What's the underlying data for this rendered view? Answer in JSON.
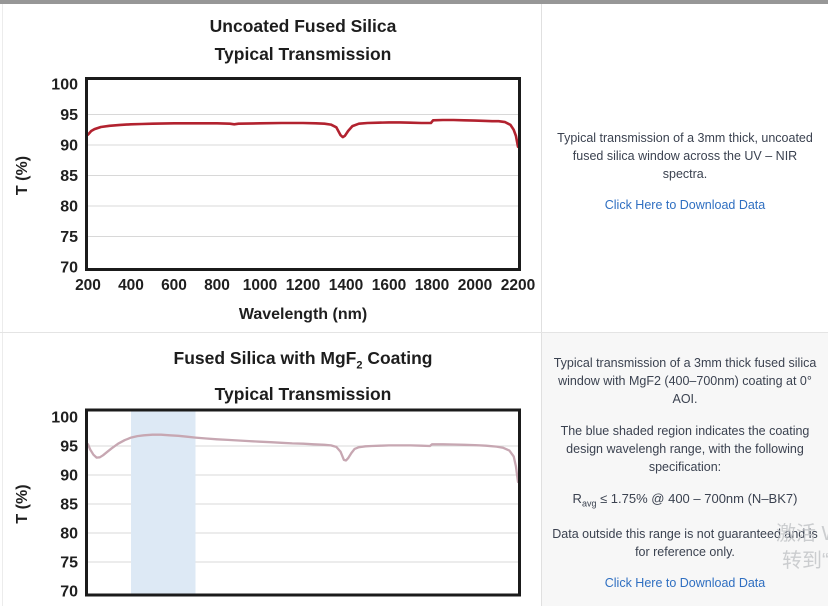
{
  "page": {
    "watermark_line1": "激活 W",
    "watermark_line2": "转到“设"
  },
  "panels": {
    "top": {
      "description": "Typical transmission of a 3mm thick, uncoated fused silica window across the UV – NIR spectra.",
      "link_label": "Click Here to Download Data"
    },
    "bottom": {
      "description": "Typical transmission of a 3mm thick fused silica window with MgF2 (400–700nm) coating at 0° AOI.",
      "shaded_note": "The blue shaded region indicates the coating design wavelengh range, with the following specification:",
      "spec_r": "R",
      "spec_sub": "avg",
      "spec_rest": " ≤ 1.75% @ 400 – 700nm (N–BK7)",
      "outside_note": "Data outside this range is not guaranteed and is for reference only.",
      "link_label": "Click Here to Download Data"
    }
  },
  "chart_data": [
    {
      "type": "line",
      "title_lines": [
        "Uncoated Fused Silica",
        "Typical Transmission"
      ],
      "xlabel": "Wavelength (nm)",
      "ylabel": "T (%)",
      "xlim": [
        200,
        2200
      ],
      "ylim": [
        70,
        100
      ],
      "xticks": [
        200,
        400,
        600,
        800,
        1000,
        1200,
        1400,
        1600,
        1800,
        2000,
        2200
      ],
      "yticks": [
        70,
        75,
        80,
        85,
        90,
        95,
        100
      ],
      "grid": "horizontal",
      "legend": "none",
      "line_color": "#b2222f",
      "series": [
        {
          "name": "Uncoated Fused Silica Transmission",
          "points": [
            [
              200,
              91.7
            ],
            [
              215,
              92.3
            ],
            [
              230,
              92.6
            ],
            [
              260,
              92.95
            ],
            [
              300,
              93.15
            ],
            [
              350,
              93.3
            ],
            [
              400,
              93.4
            ],
            [
              450,
              93.45
            ],
            [
              500,
              93.5
            ],
            [
              600,
              93.55
            ],
            [
              700,
              93.55
            ],
            [
              800,
              93.55
            ],
            [
              860,
              93.5
            ],
            [
              880,
              93.4
            ],
            [
              900,
              93.5
            ],
            [
              1000,
              93.55
            ],
            [
              1100,
              93.6
            ],
            [
              1200,
              93.6
            ],
            [
              1260,
              93.55
            ],
            [
              1300,
              93.5
            ],
            [
              1330,
              93.35
            ],
            [
              1355,
              92.9
            ],
            [
              1375,
              91.6
            ],
            [
              1385,
              91.3
            ],
            [
              1395,
              91.5
            ],
            [
              1410,
              92.3
            ],
            [
              1430,
              93.1
            ],
            [
              1460,
              93.5
            ],
            [
              1500,
              93.6
            ],
            [
              1550,
              93.65
            ],
            [
              1600,
              93.7
            ],
            [
              1650,
              93.7
            ],
            [
              1700,
              93.65
            ],
            [
              1750,
              93.6
            ],
            [
              1795,
              93.6
            ],
            [
              1805,
              94.05
            ],
            [
              1850,
              94.1
            ],
            [
              1900,
              94.1
            ],
            [
              1950,
              94.05
            ],
            [
              2000,
              94.0
            ],
            [
              2050,
              93.95
            ],
            [
              2080,
              93.9
            ],
            [
              2110,
              93.9
            ],
            [
              2140,
              93.75
            ],
            [
              2165,
              93.3
            ],
            [
              2180,
              92.5
            ],
            [
              2190,
              91.5
            ],
            [
              2200,
              89.7
            ]
          ]
        }
      ]
    },
    {
      "type": "line",
      "title_pre": "Fused Silica with MgF",
      "title_sub": "2",
      "title_post": " Coating",
      "title_line2": "Typical Transmission",
      "xlabel": "",
      "ylabel": "T (%)",
      "xlim": [
        200,
        2200
      ],
      "ylim": [
        70,
        100
      ],
      "xticks": [],
      "yticks": [
        70,
        75,
        80,
        85,
        90,
        95,
        100
      ],
      "grid": "horizontal",
      "legend": "none",
      "line_color": "#c7a7b2",
      "shaded_region": {
        "x_start": 400,
        "x_end": 700,
        "color": "#dde9f5"
      },
      "series": [
        {
          "name": "MgF2 Coated Fused Silica Transmission",
          "points": [
            [
              200,
              95.3
            ],
            [
              210,
              94.4
            ],
            [
              225,
              93.5
            ],
            [
              240,
              93.0
            ],
            [
              255,
              93.05
            ],
            [
              270,
              93.4
            ],
            [
              290,
              94.0
            ],
            [
              310,
              94.6
            ],
            [
              340,
              95.4
            ],
            [
              370,
              96.0
            ],
            [
              400,
              96.45
            ],
            [
              430,
              96.7
            ],
            [
              460,
              96.85
            ],
            [
              500,
              96.95
            ],
            [
              540,
              96.95
            ],
            [
              580,
              96.85
            ],
            [
              620,
              96.75
            ],
            [
              660,
              96.6
            ],
            [
              700,
              96.45
            ],
            [
              750,
              96.3
            ],
            [
              800,
              96.15
            ],
            [
              850,
              96.05
            ],
            [
              900,
              95.95
            ],
            [
              950,
              95.85
            ],
            [
              1000,
              95.75
            ],
            [
              1050,
              95.65
            ],
            [
              1100,
              95.55
            ],
            [
              1150,
              95.45
            ],
            [
              1200,
              95.4
            ],
            [
              1250,
              95.3
            ],
            [
              1300,
              95.2
            ],
            [
              1330,
              95.1
            ],
            [
              1355,
              94.85
            ],
            [
              1375,
              94.0
            ],
            [
              1390,
              92.6
            ],
            [
              1400,
              92.5
            ],
            [
              1410,
              92.9
            ],
            [
              1425,
              93.8
            ],
            [
              1440,
              94.5
            ],
            [
              1460,
              94.8
            ],
            [
              1490,
              94.95
            ],
            [
              1520,
              95.0
            ],
            [
              1560,
              95.05
            ],
            [
              1600,
              95.1
            ],
            [
              1650,
              95.1
            ],
            [
              1700,
              95.1
            ],
            [
              1750,
              95.05
            ],
            [
              1790,
              95.0
            ],
            [
              1800,
              95.3
            ],
            [
              1850,
              95.3
            ],
            [
              1900,
              95.25
            ],
            [
              1950,
              95.2
            ],
            [
              2000,
              95.15
            ],
            [
              2050,
              95.05
            ],
            [
              2100,
              94.9
            ],
            [
              2130,
              94.7
            ],
            [
              2160,
              94.2
            ],
            [
              2180,
              93.2
            ],
            [
              2190,
              91.5
            ],
            [
              2200,
              88.8
            ]
          ]
        }
      ]
    }
  ]
}
